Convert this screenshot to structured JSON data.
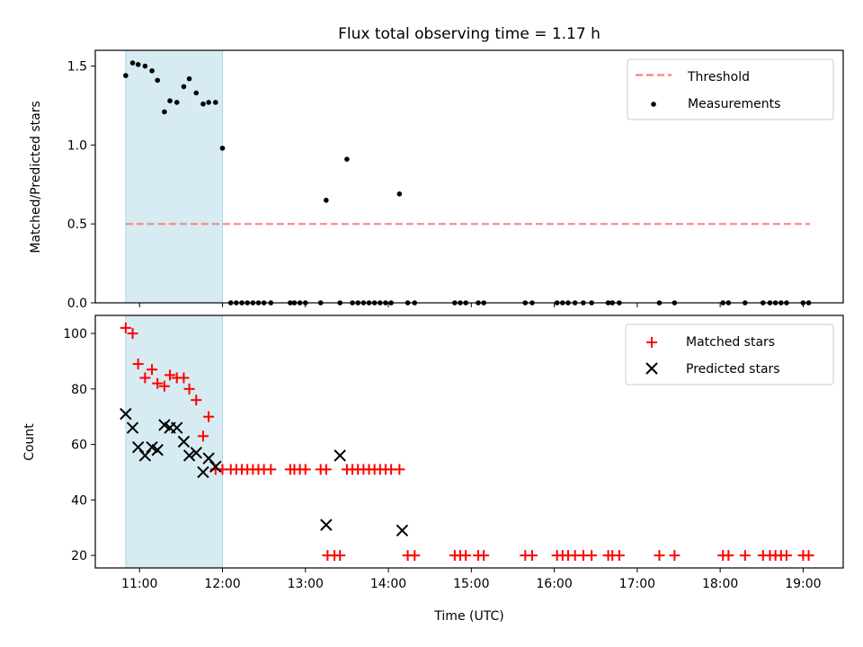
{
  "colors": {
    "threshold": "#ff7f7f",
    "measurement": "#000000",
    "matched": "#ff0000",
    "predicted": "#000000",
    "span": "#add8e6"
  },
  "chart_data": [
    {
      "type": "scatter",
      "title": "Flux total observing time = 1.17 h",
      "xlabel": "",
      "ylabel": "Matched/Predicted stars",
      "xlim": [
        "10:28",
        "19:29"
      ],
      "ylim": [
        0,
        1.6
      ],
      "x_ticks": [
        "11:00",
        "12:00",
        "13:00",
        "14:00",
        "15:00",
        "16:00",
        "17:00",
        "18:00",
        "19:00"
      ],
      "y_ticks": [
        "0.0",
        "0.5",
        "1.0",
        "1.5"
      ],
      "shaded_span": [
        "10:50",
        "12:00"
      ],
      "legend": {
        "position": "upper right",
        "threshold_label": "Threshold",
        "measurements_label": "Measurements"
      },
      "threshold": {
        "value": 0.5,
        "x_range": [
          "10:50",
          "19:05"
        ]
      },
      "measurements": {
        "x": [
          "10:50",
          "10:55",
          "10:59",
          "11:04",
          "11:09",
          "11:13",
          "11:18",
          "11:22",
          "11:27",
          "11:32",
          "11:36",
          "11:41",
          "11:46",
          "11:50",
          "11:55",
          "12:00",
          "12:06",
          "12:10",
          "12:14",
          "12:18",
          "12:22",
          "12:26",
          "12:30",
          "12:35",
          "12:49",
          "12:52",
          "12:56",
          "13:00",
          "13:11",
          "13:15",
          "13:25",
          "13:30",
          "13:34",
          "13:38",
          "13:42",
          "13:46",
          "13:50",
          "13:54",
          "13:58",
          "14:02",
          "14:08",
          "14:14",
          "14:19",
          "14:48",
          "14:52",
          "14:56",
          "15:05",
          "15:09",
          "15:39",
          "15:44",
          "16:02",
          "16:06",
          "16:10",
          "16:15",
          "16:21",
          "16:27",
          "16:39",
          "16:42",
          "16:47",
          "17:16",
          "17:27",
          "18:02",
          "18:06",
          "18:18",
          "18:31",
          "18:36",
          "18:40",
          "18:44",
          "18:48",
          "19:00",
          "19:04"
        ],
        "y": [
          1.44,
          1.52,
          1.51,
          1.5,
          1.47,
          1.41,
          1.21,
          1.28,
          1.27,
          1.37,
          1.42,
          1.33,
          1.26,
          1.27,
          1.27,
          0.98,
          0,
          0,
          0,
          0,
          0,
          0,
          0,
          0,
          0,
          0,
          0,
          0,
          0,
          0.65,
          0,
          0.91,
          0,
          0,
          0,
          0,
          0,
          0,
          0,
          0,
          0.69,
          0,
          0,
          0,
          0,
          0,
          0,
          0,
          0,
          0,
          0,
          0,
          0,
          0,
          0,
          0,
          0,
          0,
          0,
          0,
          0,
          0,
          0,
          0,
          0,
          0,
          0,
          0,
          0,
          0,
          0
        ]
      }
    },
    {
      "type": "scatter",
      "title": "",
      "xlabel": "Time (UTC)",
      "ylabel": "Count",
      "xlim": [
        "10:28",
        "19:29"
      ],
      "ylim": [
        15.5,
        106.5
      ],
      "x_ticks": [
        "11:00",
        "12:00",
        "13:00",
        "14:00",
        "15:00",
        "16:00",
        "17:00",
        "18:00",
        "19:00"
      ],
      "y_ticks": [
        "20",
        "40",
        "60",
        "80",
        "100"
      ],
      "shaded_span": [
        "10:50",
        "12:00"
      ],
      "legend": {
        "position": "upper right",
        "matched_label": "Matched stars",
        "predicted_label": "Predicted stars"
      },
      "matched": {
        "x": [
          "10:50",
          "10:55",
          "10:59",
          "11:04",
          "11:09",
          "11:13",
          "11:18",
          "11:22",
          "11:27",
          "11:32",
          "11:36",
          "11:41",
          "11:46",
          "11:50",
          "11:55",
          "12:00",
          "12:06",
          "12:10",
          "12:14",
          "12:18",
          "12:22",
          "12:26",
          "12:30",
          "12:35",
          "12:49",
          "12:52",
          "12:56",
          "13:00",
          "13:11",
          "13:15",
          "13:16",
          "13:21",
          "13:25",
          "13:30",
          "13:34",
          "13:38",
          "13:42",
          "13:46",
          "13:50",
          "13:54",
          "13:58",
          "14:02",
          "14:08",
          "14:14",
          "14:19",
          "14:48",
          "14:52",
          "14:56",
          "15:05",
          "15:09",
          "15:39",
          "15:44",
          "16:02",
          "16:06",
          "16:10",
          "16:15",
          "16:21",
          "16:27",
          "16:39",
          "16:42",
          "16:47",
          "17:16",
          "17:27",
          "18:02",
          "18:06",
          "18:18",
          "18:31",
          "18:36",
          "18:40",
          "18:44",
          "18:48",
          "19:00",
          "19:04"
        ],
        "y": [
          102,
          100,
          89,
          84,
          87,
          82,
          81,
          85,
          84,
          84,
          80,
          76,
          63,
          70,
          51,
          51,
          51,
          51,
          51,
          51,
          51,
          51,
          51,
          51,
          51,
          51,
          51,
          51,
          51,
          51,
          20,
          20,
          20,
          51,
          51,
          51,
          51,
          51,
          51,
          51,
          51,
          51,
          51,
          20,
          20,
          20,
          20,
          20,
          20,
          20,
          20,
          20,
          20,
          20,
          20,
          20,
          20,
          20,
          20,
          20,
          20,
          20,
          20,
          20,
          20,
          20,
          20,
          20,
          20,
          20,
          20,
          20,
          20
        ]
      },
      "predicted": {
        "x": [
          "10:50",
          "10:55",
          "10:59",
          "11:04",
          "11:09",
          "11:13",
          "11:18",
          "11:22",
          "11:27",
          "11:32",
          "11:36",
          "11:41",
          "11:46",
          "11:50",
          "11:55",
          "13:15",
          "13:25",
          "14:10"
        ],
        "y": [
          71,
          66,
          59,
          56,
          59,
          58,
          67,
          66,
          66,
          61,
          56,
          57,
          50,
          55,
          52,
          31,
          56,
          29
        ]
      }
    }
  ]
}
